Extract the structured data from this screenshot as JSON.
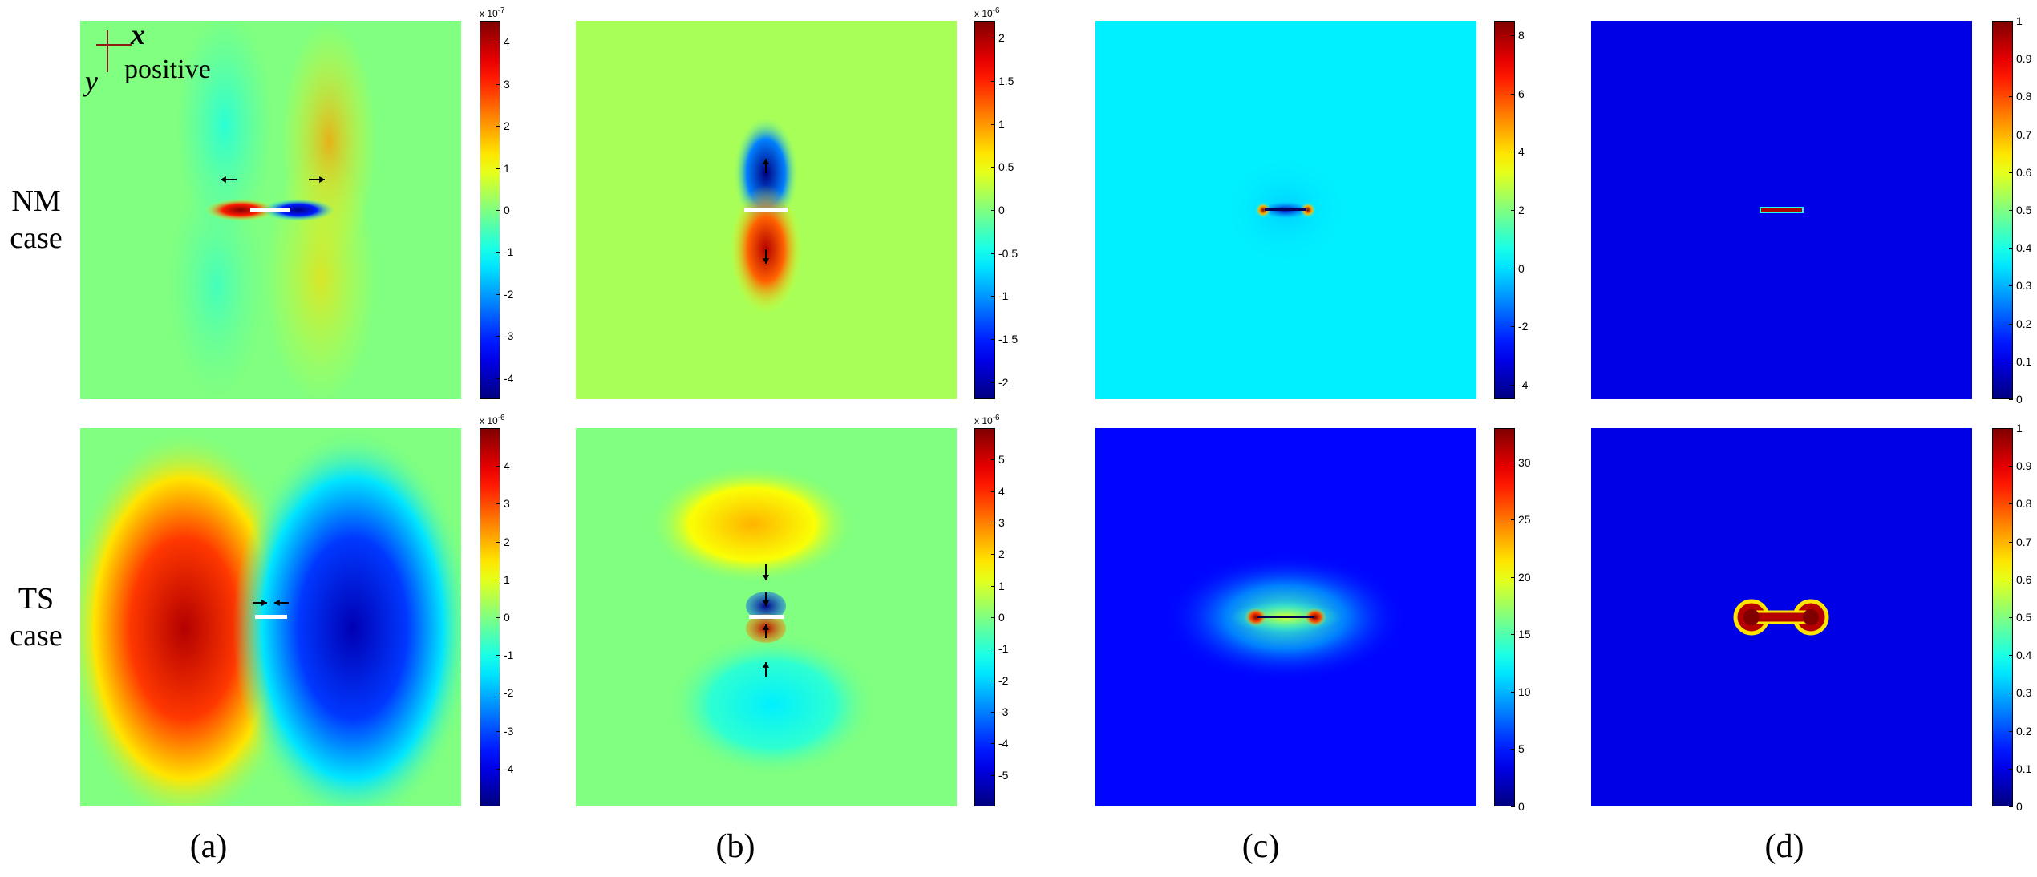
{
  "figure": {
    "row_labels": [
      {
        "line1": "NM",
        "line2": "case"
      },
      {
        "line1": "TS",
        "line2": "case"
      }
    ],
    "captions": [
      "(a)",
      "(b)",
      "(c)",
      "(d)"
    ],
    "axis_note": {
      "x": "x",
      "y": "y",
      "text": "positive"
    }
  },
  "chart_data": [
    {
      "type": "heatmap",
      "panel": "(a)",
      "row": "NM case",
      "colormap": "jet",
      "clim": [
        -4.5,
        4.5
      ],
      "exponent": "x 10^-7",
      "colorbar_ticks": [
        "4",
        "3",
        "2",
        "1",
        "0",
        "-1",
        "-2",
        "-3",
        "-4"
      ],
      "pattern": "quadrupole lobes around horizontal crack, red left / blue right of crack, arrows pointing outward"
    },
    {
      "type": "heatmap",
      "panel": "(b)",
      "row": "NM case",
      "colormap": "jet",
      "clim": [
        -2.2,
        2.2
      ],
      "exponent": "x 10^-6",
      "colorbar_ticks": [
        "2",
        "1.5",
        "1",
        "0.5",
        "0",
        "-0.5",
        "-1",
        "-1.5",
        "-2"
      ],
      "pattern": "blue lobe above crack, red lobe below crack, arrows pointing outward vertically"
    },
    {
      "type": "heatmap",
      "panel": "(c)",
      "row": "NM case",
      "colormap": "jet",
      "clim": [
        -4.5,
        8.5
      ],
      "exponent": "",
      "colorbar_ticks": [
        "8",
        "6",
        "4",
        "2",
        "0",
        "-2",
        "-4"
      ],
      "pattern": "cyan background, red crack tips, blue between tips"
    },
    {
      "type": "heatmap",
      "panel": "(d)",
      "row": "NM case",
      "colormap": "jet",
      "clim": [
        0,
        1
      ],
      "exponent": "",
      "colorbar_ticks": [
        "1",
        "0.9",
        "0.8",
        "0.7",
        "0.6",
        "0.5",
        "0.4",
        "0.3",
        "0.2",
        "0.1",
        "0"
      ],
      "pattern": "dark blue background, thin damaged crack line"
    },
    {
      "type": "heatmap",
      "panel": "(a)",
      "row": "TS case",
      "colormap": "jet",
      "clim": [
        -5,
        5
      ],
      "exponent": "x 10^-6",
      "colorbar_ticks": [
        "4",
        "3",
        "2",
        "1",
        "0",
        "-1",
        "-2",
        "-3",
        "-4"
      ],
      "pattern": "large red lobe left, large blue lobe right, arrows pointing inward"
    },
    {
      "type": "heatmap",
      "panel": "(b)",
      "row": "TS case",
      "colormap": "jet",
      "clim": [
        -6,
        6
      ],
      "exponent": "x 10^-6",
      "colorbar_ticks": [
        "5",
        "4",
        "3",
        "2",
        "1",
        "0",
        "-1",
        "-2",
        "-3",
        "-4",
        "-5"
      ],
      "pattern": "yellow lobe above, cyan lobe below, dark blue / red at crack, arrows pointing inward"
    },
    {
      "type": "heatmap",
      "panel": "(c)",
      "row": "TS case",
      "colormap": "jet",
      "clim": [
        0,
        33
      ],
      "exponent": "",
      "colorbar_ticks": [
        "30",
        "25",
        "20",
        "15",
        "10",
        "5",
        "0"
      ],
      "pattern": "blue background, bright glow around crack tips"
    },
    {
      "type": "heatmap",
      "panel": "(d)",
      "row": "TS case",
      "colormap": "jet",
      "clim": [
        0,
        1
      ],
      "exponent": "",
      "colorbar_ticks": [
        "1",
        "0.9",
        "0.8",
        "0.7",
        "0.6",
        "0.5",
        "0.4",
        "0.3",
        "0.2",
        "0.1",
        "0"
      ],
      "pattern": "dark blue background, dumbbell-shaped damage zone"
    }
  ]
}
